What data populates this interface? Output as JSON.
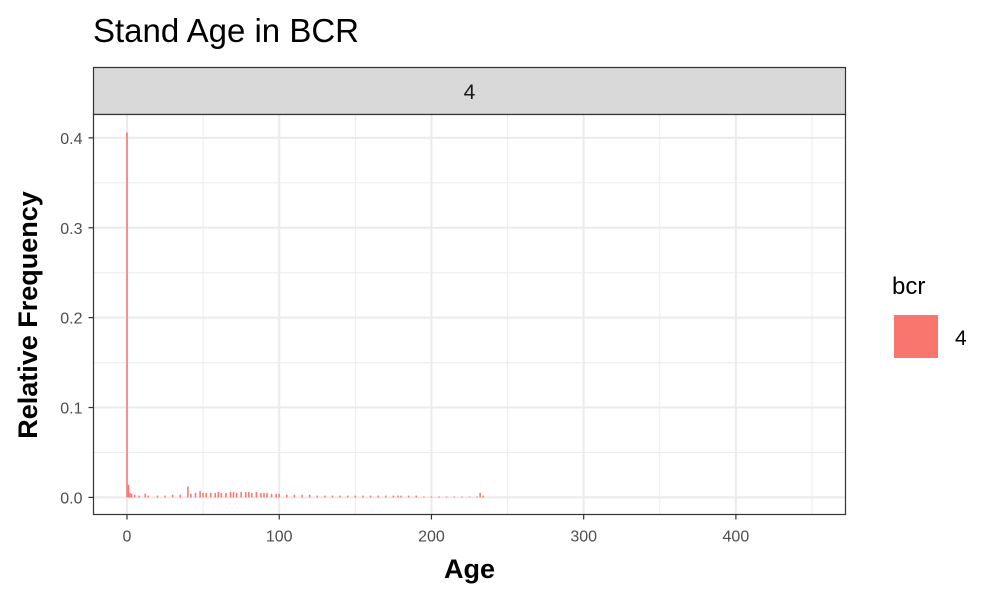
{
  "chart_data": {
    "type": "bar",
    "title": "Stand Age in BCR",
    "facet_label": "4",
    "xlabel": "Age",
    "ylabel": "Relative Frequency",
    "xlim": [
      -22,
      472
    ],
    "ylim": [
      -0.019,
      0.426
    ],
    "x_ticks": [
      0,
      100,
      200,
      300,
      400
    ],
    "y_ticks": [
      0.0,
      0.1,
      0.2,
      0.3,
      0.4
    ],
    "x_tick_labels": [
      "0",
      "100",
      "200",
      "300",
      "400"
    ],
    "y_tick_labels": [
      "0.0",
      "0.1",
      "0.2",
      "0.3",
      "0.4"
    ],
    "grid": true,
    "legend_position": "right",
    "series": [
      {
        "name": "4",
        "color": "#F8766D",
        "x": [
          0,
          1,
          2,
          3,
          5,
          8,
          12,
          14,
          20,
          25,
          30,
          35,
          40,
          42,
          45,
          48,
          50,
          52,
          55,
          58,
          60,
          62,
          65,
          68,
          70,
          72,
          75,
          78,
          80,
          82,
          85,
          88,
          90,
          92,
          95,
          98,
          100,
          105,
          110,
          115,
          120,
          125,
          130,
          135,
          140,
          145,
          150,
          155,
          160,
          165,
          170,
          175,
          178,
          180,
          185,
          190,
          195,
          200,
          205,
          210,
          215,
          220,
          225,
          230,
          232,
          234
        ],
        "values": [
          0.406,
          0.014,
          0.005,
          0.004,
          0.003,
          0.002,
          0.004,
          0.002,
          0.002,
          0.002,
          0.003,
          0.003,
          0.012,
          0.004,
          0.005,
          0.007,
          0.005,
          0.005,
          0.005,
          0.005,
          0.006,
          0.005,
          0.005,
          0.006,
          0.006,
          0.005,
          0.006,
          0.006,
          0.006,
          0.005,
          0.006,
          0.005,
          0.005,
          0.005,
          0.004,
          0.004,
          0.004,
          0.003,
          0.003,
          0.003,
          0.003,
          0.002,
          0.002,
          0.002,
          0.002,
          0.002,
          0.002,
          0.002,
          0.002,
          0.002,
          0.002,
          0.002,
          0.002,
          0.002,
          0.002,
          0.002,
          0.001,
          0.001,
          0.001,
          0.001,
          0.001,
          0.001,
          0.001,
          0.001,
          0.005,
          0.002
        ]
      }
    ]
  }
}
